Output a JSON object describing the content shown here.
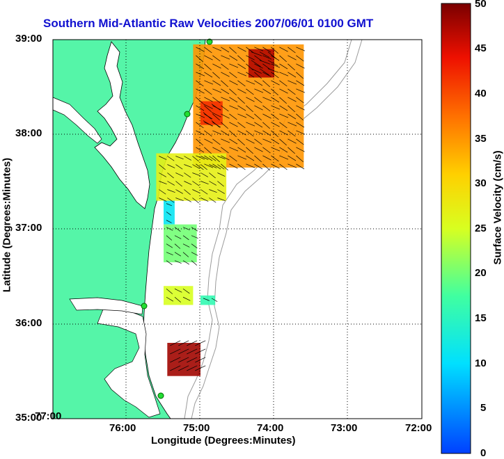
{
  "title": "Southern Mid-Atlantic Raw Velocities 2007/06/01 0100 GMT",
  "axes": {
    "xlabel": "Longitude (Degrees:Minutes)",
    "ylabel": "Latitude (Degrees:Minutes)",
    "x_ticks": [
      "77:00",
      "76:00",
      "75:00",
      "74:00",
      "73:00",
      "72:00"
    ],
    "y_ticks": [
      "39:00",
      "38:00",
      "37:00",
      "36:00",
      "35:00"
    ]
  },
  "colorbar": {
    "label": "Surface Velocity (cm/s)",
    "ticks": [
      "50",
      "45",
      "40",
      "35",
      "30",
      "25",
      "20",
      "15",
      "10",
      "5",
      "0"
    ],
    "min": 0,
    "max": 50
  },
  "colors": {
    "land": "#55f5a8",
    "title": "#1010d0"
  },
  "chart_data": {
    "type": "heatmap",
    "xlim": [
      -77,
      -72
    ],
    "ylim": [
      35,
      39
    ],
    "units": "cm/s",
    "regions": [
      {
        "lon_range": [
          -75.1,
          -73.6
        ],
        "lat_range": [
          37.65,
          38.95
        ],
        "velocity": 35
      },
      {
        "lon_range": [
          -74.35,
          -74.0
        ],
        "lat_range": [
          38.6,
          38.9
        ],
        "velocity": 47
      },
      {
        "lon_range": [
          -75.0,
          -74.7
        ],
        "lat_range": [
          38.1,
          38.35
        ],
        "velocity": 42
      },
      {
        "lon_range": [
          -75.6,
          -74.65
        ],
        "lat_range": [
          37.3,
          37.8
        ],
        "velocity": 27
      },
      {
        "lon_range": [
          -75.5,
          -75.35
        ],
        "lat_range": [
          37.05,
          37.3
        ],
        "velocity": 11
      },
      {
        "lon_range": [
          -75.5,
          -75.05
        ],
        "lat_range": [
          36.65,
          37.05
        ],
        "velocity": 20
      },
      {
        "lon_range": [
          -75.5,
          -75.1
        ],
        "lat_range": [
          36.2,
          36.4
        ],
        "velocity": 25
      },
      {
        "lon_range": [
          -75.0,
          -74.8
        ],
        "lat_range": [
          36.2,
          36.3
        ],
        "velocity": 16
      },
      {
        "lon_range": [
          -75.45,
          -75.0
        ],
        "lat_range": [
          35.45,
          35.8
        ],
        "velocity": 48
      }
    ]
  }
}
